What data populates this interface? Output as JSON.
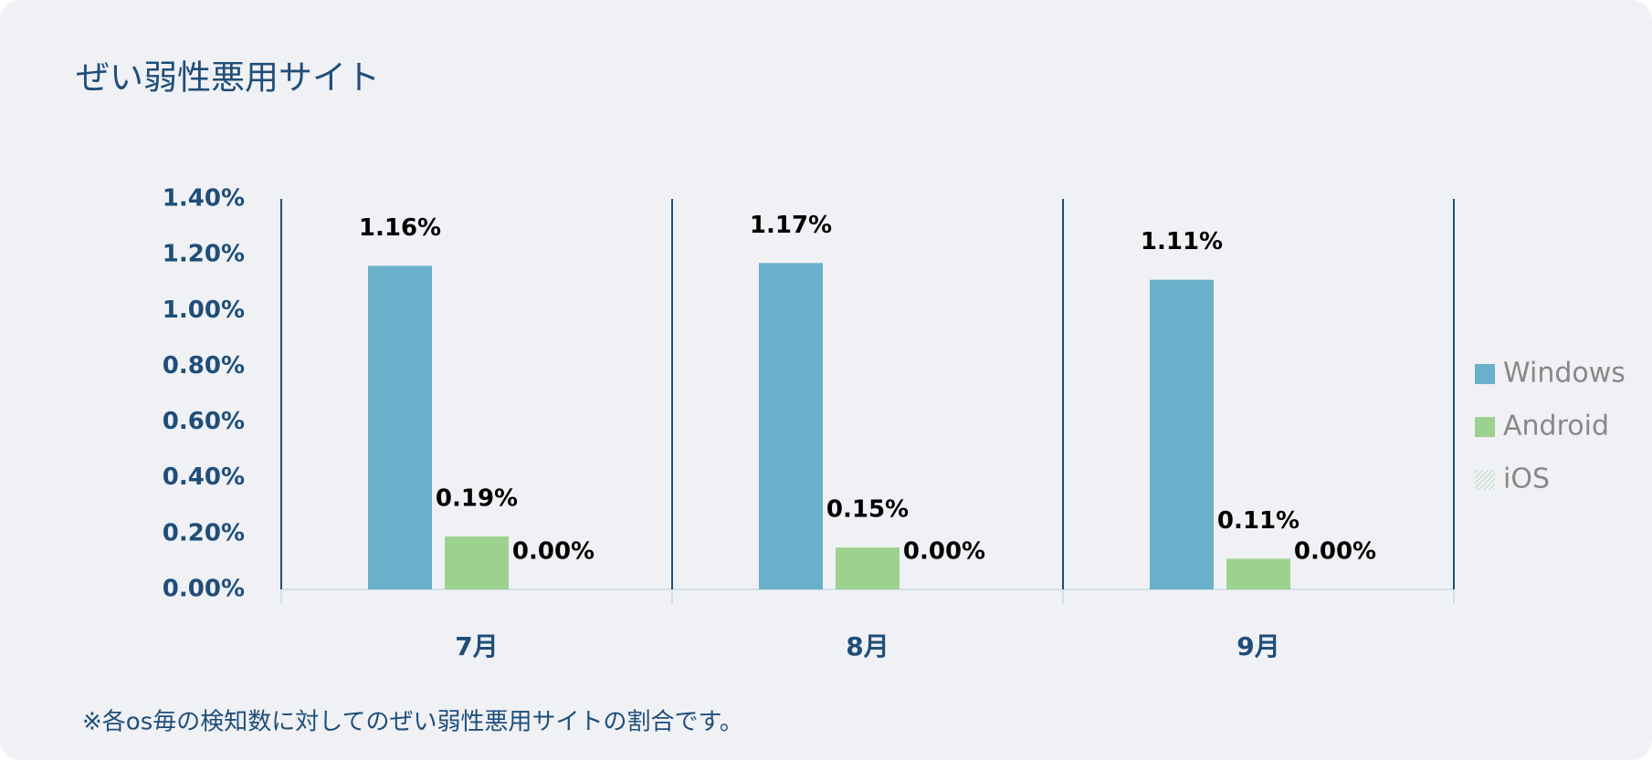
{
  "chart_data": {
    "type": "bar",
    "title": "ぜい弱性悪用サイト",
    "footnote": "※各os毎の検知数に対してのぜい弱性悪用サイトの割合です。",
    "categories": [
      "7月",
      "8月",
      "9月"
    ],
    "series": [
      {
        "name": "Windows",
        "color": "#6ab0cb",
        "values": [
          1.16,
          1.17,
          1.11
        ],
        "value_labels": [
          "1.16%",
          "1.17%",
          "1.11%"
        ]
      },
      {
        "name": "Android",
        "color": "#9dd18f",
        "values": [
          0.19,
          0.15,
          0.11
        ],
        "value_labels": [
          "0.19%",
          "0.15%",
          "0.11%"
        ]
      },
      {
        "name": "iOS",
        "color": "#b9dcc0",
        "pattern": "hatch",
        "values": [
          0,
          0,
          0
        ],
        "value_labels": [
          "0.00%",
          "0.00%",
          "0.00%"
        ]
      }
    ],
    "ylim": [
      0,
      1.4
    ],
    "yticks": [
      {
        "value": 0,
        "label": "0.00%"
      },
      {
        "value": 0.2,
        "label": "0.20%"
      },
      {
        "value": 0.4,
        "label": "0.40%"
      },
      {
        "value": 0.6,
        "label": "0.60%"
      },
      {
        "value": 0.8,
        "label": "0.80%"
      },
      {
        "value": 1.0,
        "label": "1.00%"
      },
      {
        "value": 1.2,
        "label": "1.20%"
      },
      {
        "value": 1.4,
        "label": "1.40%"
      }
    ],
    "legend": "right"
  }
}
